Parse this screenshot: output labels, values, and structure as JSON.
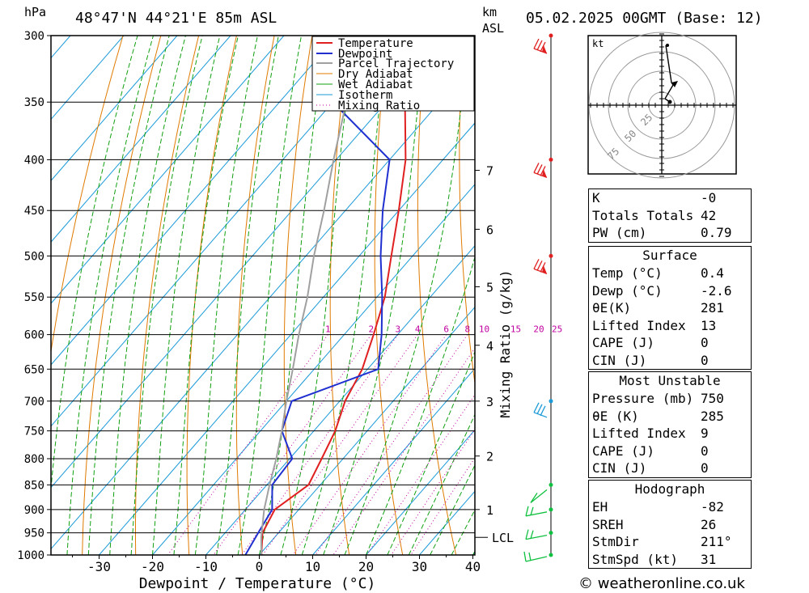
{
  "header": {
    "pressure_unit": "hPa",
    "location": "48°47'N  44°21'E  85m  ASL",
    "height_unit": "km",
    "height_unit2": "ASL",
    "datetime": "05.02.2025  00GMT  (Base: 12)"
  },
  "axes": {
    "xlabel": "Dewpoint / Temperature (°C)",
    "ylabel_right": "Mixing Ratio (g/kg)",
    "lcl_label": "LCL"
  },
  "chart_data": {
    "type": "line",
    "y_axis": {
      "name": "hPa",
      "scale": "log",
      "range": [
        300,
        1000
      ],
      "ticks": [
        300,
        350,
        400,
        450,
        500,
        550,
        600,
        650,
        700,
        750,
        800,
        850,
        900,
        950,
        1000
      ]
    },
    "x_axis": {
      "range": [
        -40,
        40
      ],
      "ticks": [
        -30,
        -20,
        -10,
        0,
        10,
        20,
        30,
        40
      ]
    },
    "km_ticks": [
      {
        "km": 1,
        "p": 900
      },
      {
        "km": 2,
        "p": 795
      },
      {
        "km": 3,
        "p": 700
      },
      {
        "km": 4,
        "p": 615
      },
      {
        "km": 5,
        "p": 537
      },
      {
        "km": 6,
        "p": 470
      },
      {
        "km": 7,
        "p": 410
      }
    ],
    "lcl_pressure": 960,
    "mixing_ratio_labels": [
      "1",
      "2",
      "3",
      "4",
      "6",
      "8",
      "10",
      "15",
      "20",
      "25"
    ],
    "mixing_ratio_values": [
      1,
      2,
      3,
      4,
      6,
      8,
      10,
      15,
      20,
      25
    ],
    "legend": [
      "Temperature",
      "Dewpoint",
      "Parcel Trajectory",
      "Dry Adiabat",
      "Wet Adiabat",
      "Isotherm",
      "Mixing Ratio"
    ],
    "series": [
      {
        "name": "Temperature",
        "color": "#e02020",
        "points": [
          [
            1000,
            0.4
          ],
          [
            950,
            -3
          ],
          [
            900,
            -4.5
          ],
          [
            850,
            -2.2
          ],
          [
            800,
            -4
          ],
          [
            750,
            -6
          ],
          [
            700,
            -9
          ],
          [
            650,
            -11
          ],
          [
            600,
            -14.5
          ],
          [
            550,
            -18.5
          ],
          [
            500,
            -24
          ],
          [
            450,
            -30
          ],
          [
            400,
            -37
          ],
          [
            350,
            -46.5
          ],
          [
            300,
            -51
          ]
        ]
      },
      {
        "name": "Dewpoint",
        "color": "#2030d0",
        "points": [
          [
            1000,
            -2.6
          ],
          [
            950,
            -3.8
          ],
          [
            900,
            -5
          ],
          [
            850,
            -9
          ],
          [
            800,
            -9.5
          ],
          [
            750,
            -16
          ],
          [
            700,
            -19
          ],
          [
            650,
            -8
          ],
          [
            600,
            -13
          ],
          [
            550,
            -19
          ],
          [
            500,
            -26
          ],
          [
            450,
            -33
          ],
          [
            400,
            -40
          ],
          [
            350,
            -60
          ],
          [
            300,
            -68
          ]
        ]
      },
      {
        "name": "Parcel Trajectory",
        "color": "#a0a0a0",
        "points": [
          [
            1000,
            0.4
          ],
          [
            960,
            -2.5
          ],
          [
            900,
            -6.5
          ],
          [
            850,
            -9.5
          ],
          [
            800,
            -12.5
          ],
          [
            750,
            -16
          ],
          [
            700,
            -20
          ],
          [
            650,
            -24
          ],
          [
            600,
            -28.5
          ],
          [
            550,
            -33
          ],
          [
            500,
            -38.5
          ],
          [
            450,
            -44
          ],
          [
            400,
            -50.5
          ],
          [
            350,
            -57.5
          ],
          [
            300,
            -65
          ]
        ]
      }
    ],
    "wind_barb_pressures": [
      300,
      400,
      500,
      700,
      850,
      900,
      950,
      1000
    ],
    "hodograph_unit": "kt",
    "hodograph_rings": [
      "25",
      "50",
      "75"
    ]
  },
  "indices": {
    "k_label": "K",
    "k": "-0",
    "tt_label": "Totals Totals",
    "tt": "42",
    "pw_label": "PW (cm)",
    "pw": "0.79"
  },
  "surface": {
    "title": "Surface",
    "rows": [
      {
        "label": "Temp (°C)",
        "value": "0.4"
      },
      {
        "label": "Dewp (°C)",
        "value": "-2.6"
      },
      {
        "label": "θE(K)",
        "value": "281"
      },
      {
        "label": "Lifted Index",
        "value": "13"
      },
      {
        "label": "CAPE (J)",
        "value": "0"
      },
      {
        "label": "CIN (J)",
        "value": "0"
      }
    ]
  },
  "unstable": {
    "title": "Most Unstable",
    "rows": [
      {
        "label": "Pressure (mb)",
        "value": "750"
      },
      {
        "label": "θE (K)",
        "value": "285"
      },
      {
        "label": "Lifted Index",
        "value": "9"
      },
      {
        "label": "CAPE (J)",
        "value": "0"
      },
      {
        "label": "CIN (J)",
        "value": "0"
      }
    ]
  },
  "hodograph_stats": {
    "title": "Hodograph",
    "rows": [
      {
        "label": "EH",
        "value": "-82"
      },
      {
        "label": "SREH",
        "value": "26"
      },
      {
        "label": "StmDir",
        "value": "211°"
      },
      {
        "label": "StmSpd (kt)",
        "value": "31"
      }
    ]
  },
  "credit": "© weatheronline.co.uk"
}
